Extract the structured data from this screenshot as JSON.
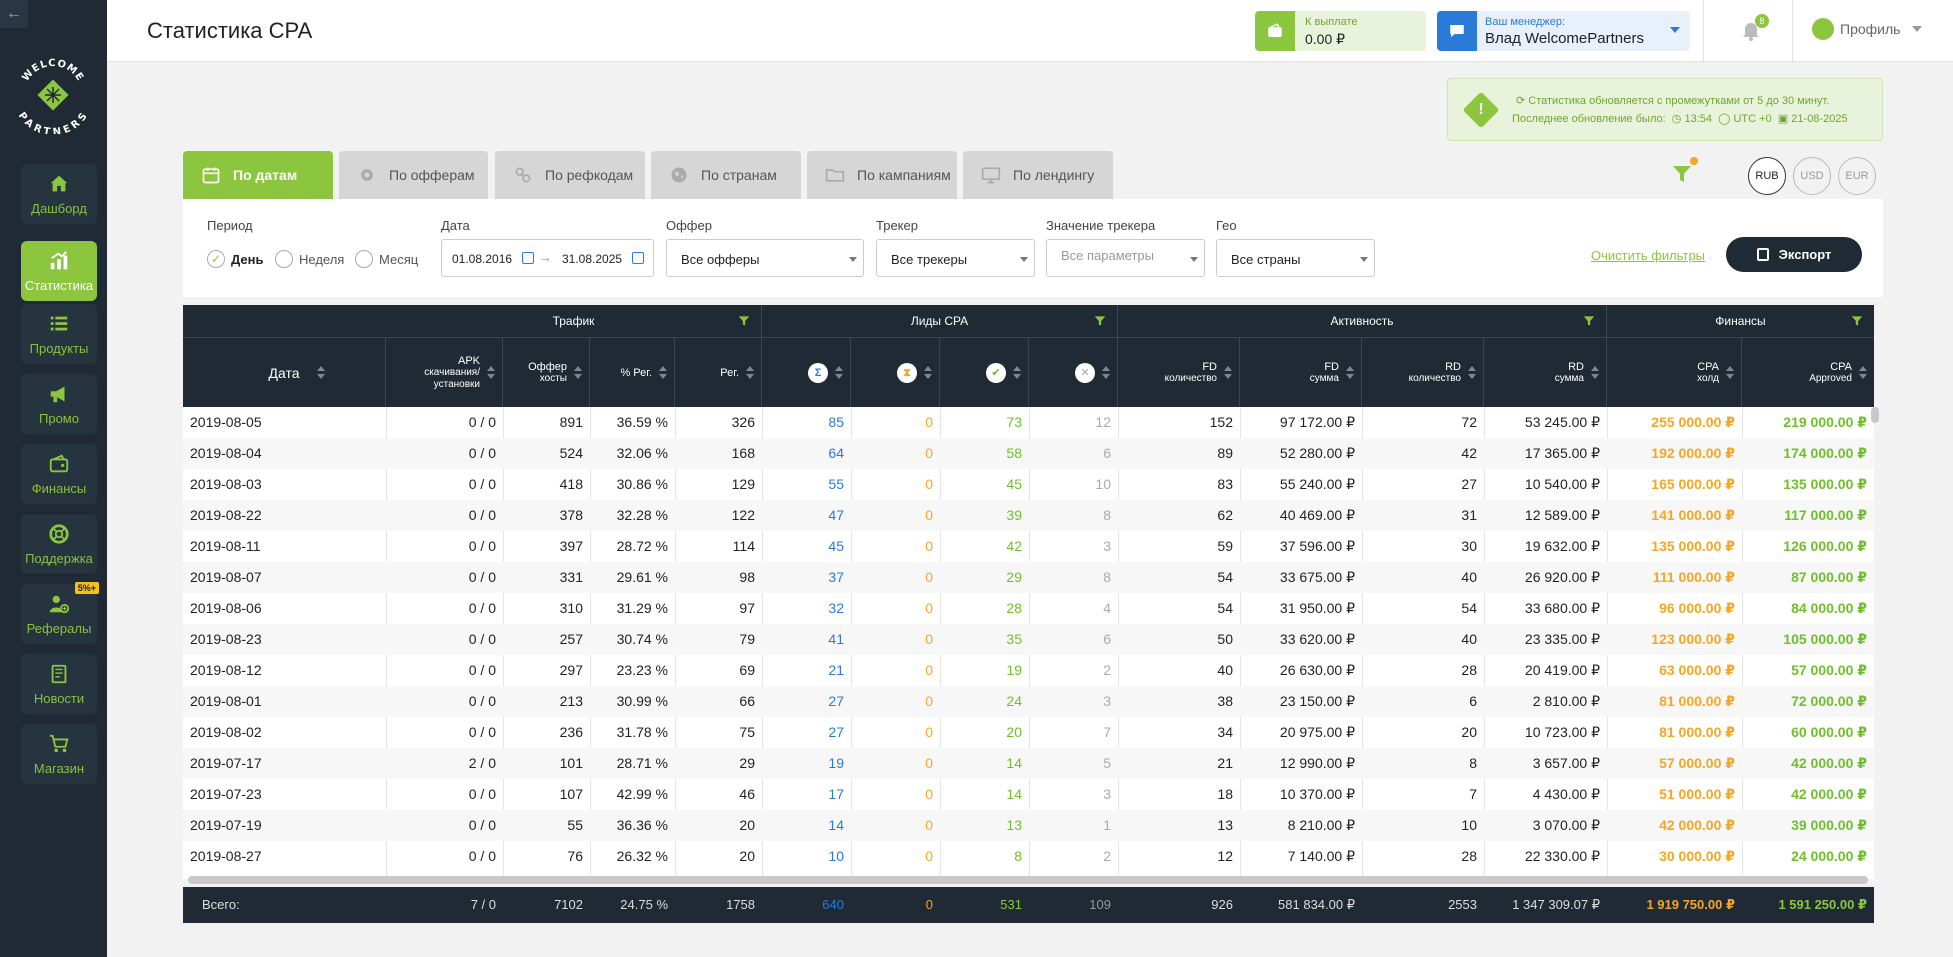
{
  "sidebar": {
    "items": [
      {
        "label": "Дашборд",
        "icon": "home-icon"
      },
      {
        "label": "Статистика",
        "icon": "stats-icon",
        "active": true
      },
      {
        "label": "Продукты",
        "icon": "list-icon"
      },
      {
        "label": "Промо",
        "icon": "megaphone-icon"
      },
      {
        "label": "Финансы",
        "icon": "wallet-icon"
      },
      {
        "label": "Поддержка",
        "icon": "lifebuoy-icon"
      },
      {
        "label": "Рефералы",
        "icon": "referrals-icon",
        "badge": "5%+"
      },
      {
        "label": "Новости",
        "icon": "news-icon"
      },
      {
        "label": "Магазин",
        "icon": "cart-icon"
      }
    ],
    "logo_text": "WELCOME PARTNERS"
  },
  "header": {
    "title": "Статистика CPA",
    "payout_label": "К выплате",
    "payout_value": "0.00 ₽",
    "manager_label": "Ваш менеджер:",
    "manager_name": "Влад WelcomePartners",
    "notifications_count": "8",
    "profile_label": "Профиль"
  },
  "notice": {
    "line1": "Статистика обновляется с промежутками от 5 до 30 минут.",
    "line2_label": "Последнее обновление было:",
    "time": "13:54",
    "timezone": "UTC +0",
    "date": "21-08-2025"
  },
  "tabs": [
    {
      "label": "По датам",
      "active": true
    },
    {
      "label": "По офферам"
    },
    {
      "label": "По рефкодам"
    },
    {
      "label": "По странам"
    },
    {
      "label": "По кампаниям"
    },
    {
      "label": "По лендингу"
    }
  ],
  "currencies": [
    "RUB",
    "USD",
    "EUR"
  ],
  "active_currency": "RUB",
  "filters": {
    "period_label": "Период",
    "period_options": [
      "День",
      "Неделя",
      "Месяц"
    ],
    "period_selected": "День",
    "date_label": "Дата",
    "date_from": "01.08.2016",
    "date_to": "31.08.2025",
    "offer_label": "Оффер",
    "offer_value": "Все офферы",
    "tracker_label": "Трекер",
    "tracker_value": "Все трекеры",
    "tracker_value_label": "Значение трекера",
    "tracker_value_placeholder": "Все параметры",
    "geo_label": "Гео",
    "geo_value": "Все страны",
    "clear_label": "Очистить фильтры",
    "export_label": "Экспорт"
  },
  "table": {
    "groups": [
      "Трафик",
      "Лиды CPA",
      "Активность",
      "Финансы"
    ],
    "columns": {
      "date": "Дата",
      "apk": [
        "APK",
        "скачивания/",
        "установки"
      ],
      "hosts": [
        "Оффер",
        "хосты"
      ],
      "reg_pct": "% Рег.",
      "reg": "Рег.",
      "fd_count": [
        "FD",
        "количество"
      ],
      "fd_sum": [
        "FD",
        "сумма"
      ],
      "rd_count": [
        "RD",
        "количество"
      ],
      "rd_sum": [
        "RD",
        "сумма"
      ],
      "cpa_hold": [
        "CPA",
        "холд"
      ],
      "cpa_approved": [
        "CPA",
        "Approved"
      ]
    },
    "rows": [
      [
        "2019-08-05",
        "0 / 0",
        "891",
        "36.59 %",
        "326",
        "85",
        "0",
        "73",
        "12",
        "152",
        "97 172.00 ₽",
        "72",
        "53 245.00 ₽",
        "255 000.00 ₽",
        "219 000.00 ₽"
      ],
      [
        "2019-08-04",
        "0 / 0",
        "524",
        "32.06 %",
        "168",
        "64",
        "0",
        "58",
        "6",
        "89",
        "52 280.00 ₽",
        "42",
        "17 365.00 ₽",
        "192 000.00 ₽",
        "174 000.00 ₽"
      ],
      [
        "2019-08-03",
        "0 / 0",
        "418",
        "30.86 %",
        "129",
        "55",
        "0",
        "45",
        "10",
        "83",
        "55 240.00 ₽",
        "27",
        "10 540.00 ₽",
        "165 000.00 ₽",
        "135 000.00 ₽"
      ],
      [
        "2019-08-22",
        "0 / 0",
        "378",
        "32.28 %",
        "122",
        "47",
        "0",
        "39",
        "8",
        "62",
        "40 469.00 ₽",
        "31",
        "12 589.00 ₽",
        "141 000.00 ₽",
        "117 000.00 ₽"
      ],
      [
        "2019-08-11",
        "0 / 0",
        "397",
        "28.72 %",
        "114",
        "45",
        "0",
        "42",
        "3",
        "59",
        "37 596.00 ₽",
        "30",
        "19 632.00 ₽",
        "135 000.00 ₽",
        "126 000.00 ₽"
      ],
      [
        "2019-08-07",
        "0 / 0",
        "331",
        "29.61 %",
        "98",
        "37",
        "0",
        "29",
        "8",
        "54",
        "33 675.00 ₽",
        "40",
        "26 920.00 ₽",
        "111 000.00 ₽",
        "87 000.00 ₽"
      ],
      [
        "2019-08-06",
        "0 / 0",
        "310",
        "31.29 %",
        "97",
        "32",
        "0",
        "28",
        "4",
        "54",
        "31 950.00 ₽",
        "54",
        "33 680.00 ₽",
        "96 000.00 ₽",
        "84 000.00 ₽"
      ],
      [
        "2019-08-23",
        "0 / 0",
        "257",
        "30.74 %",
        "79",
        "41",
        "0",
        "35",
        "6",
        "50",
        "33 620.00 ₽",
        "40",
        "23 335.00 ₽",
        "123 000.00 ₽",
        "105 000.00 ₽"
      ],
      [
        "2019-08-12",
        "0 / 0",
        "297",
        "23.23 %",
        "69",
        "21",
        "0",
        "19",
        "2",
        "40",
        "26 630.00 ₽",
        "28",
        "20 419.00 ₽",
        "63 000.00 ₽",
        "57 000.00 ₽"
      ],
      [
        "2019-08-01",
        "0 / 0",
        "213",
        "30.99 %",
        "66",
        "27",
        "0",
        "24",
        "3",
        "38",
        "23 150.00 ₽",
        "6",
        "2 810.00 ₽",
        "81 000.00 ₽",
        "72 000.00 ₽"
      ],
      [
        "2019-08-02",
        "0 / 0",
        "236",
        "31.78 %",
        "75",
        "27",
        "0",
        "20",
        "7",
        "34",
        "20 975.00 ₽",
        "20",
        "10 723.00 ₽",
        "81 000.00 ₽",
        "60 000.00 ₽"
      ],
      [
        "2019-07-17",
        "2 / 0",
        "101",
        "28.71 %",
        "29",
        "19",
        "0",
        "14",
        "5",
        "21",
        "12 990.00 ₽",
        "8",
        "3 657.00 ₽",
        "57 000.00 ₽",
        "42 000.00 ₽"
      ],
      [
        "2019-07-23",
        "0 / 0",
        "107",
        "42.99 %",
        "46",
        "17",
        "0",
        "14",
        "3",
        "18",
        "10 370.00 ₽",
        "7",
        "4 430.00 ₽",
        "51 000.00 ₽",
        "42 000.00 ₽"
      ],
      [
        "2019-07-19",
        "0 / 0",
        "55",
        "36.36 %",
        "20",
        "14",
        "0",
        "13",
        "1",
        "13",
        "8 210.00 ₽",
        "10",
        "3 070.00 ₽",
        "42 000.00 ₽",
        "39 000.00 ₽"
      ],
      [
        "2019-08-27",
        "0 / 0",
        "76",
        "26.32 %",
        "20",
        "10",
        "0",
        "8",
        "2",
        "12",
        "7 140.00 ₽",
        "28",
        "22 330.00 ₽",
        "30 000.00 ₽",
        "24 000.00 ₽"
      ]
    ],
    "total": {
      "label": "Всего:",
      "values": [
        "7 / 0",
        "7102",
        "24.75 %",
        "1758",
        "640",
        "0",
        "531",
        "109",
        "926",
        "581 834.00 ₽",
        "2553",
        "1 347 309.07 ₽",
        "1 919 750.00 ₽",
        "1 591 250.00 ₽"
      ]
    }
  }
}
